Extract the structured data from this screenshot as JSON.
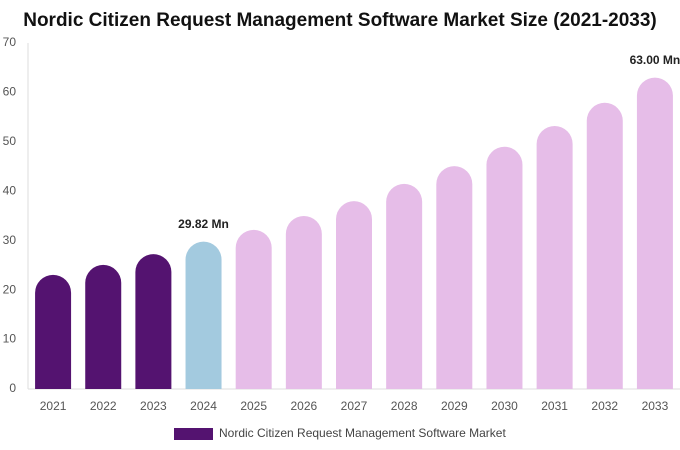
{
  "chart_data": {
    "type": "bar",
    "title": "Nordic Citizen Request Management Software Market Size (2021-2033)",
    "categories": [
      "2021",
      "2022",
      "2023",
      "2024",
      "2025",
      "2026",
      "2027",
      "2028",
      "2029",
      "2030",
      "2031",
      "2032",
      "2033"
    ],
    "series": [
      {
        "name": "Nordic Citizen Request Management Software Market",
        "color": "#541370",
        "colors": [
          "#541370",
          "#541370",
          "#541370",
          "#a3cadf",
          "#e6bde8",
          "#e6bde8",
          "#e6bde8",
          "#e6bde8",
          "#e6bde8",
          "#e6bde8",
          "#e6bde8",
          "#e6bde8",
          "#e6bde8"
        ],
        "values": [
          23.1,
          25.1,
          27.3,
          29.82,
          32.2,
          35,
          38,
          41.5,
          45.1,
          49,
          53.2,
          57.9,
          63
        ],
        "value_labels": [
          null,
          null,
          null,
          "29.82 Mn",
          null,
          null,
          null,
          null,
          null,
          null,
          null,
          null,
          "63.00 Mn"
        ]
      }
    ],
    "ylim": [
      0,
      70
    ],
    "yticks": [
      0,
      10,
      20,
      30,
      40,
      50,
      60,
      70
    ],
    "grid": false
  }
}
